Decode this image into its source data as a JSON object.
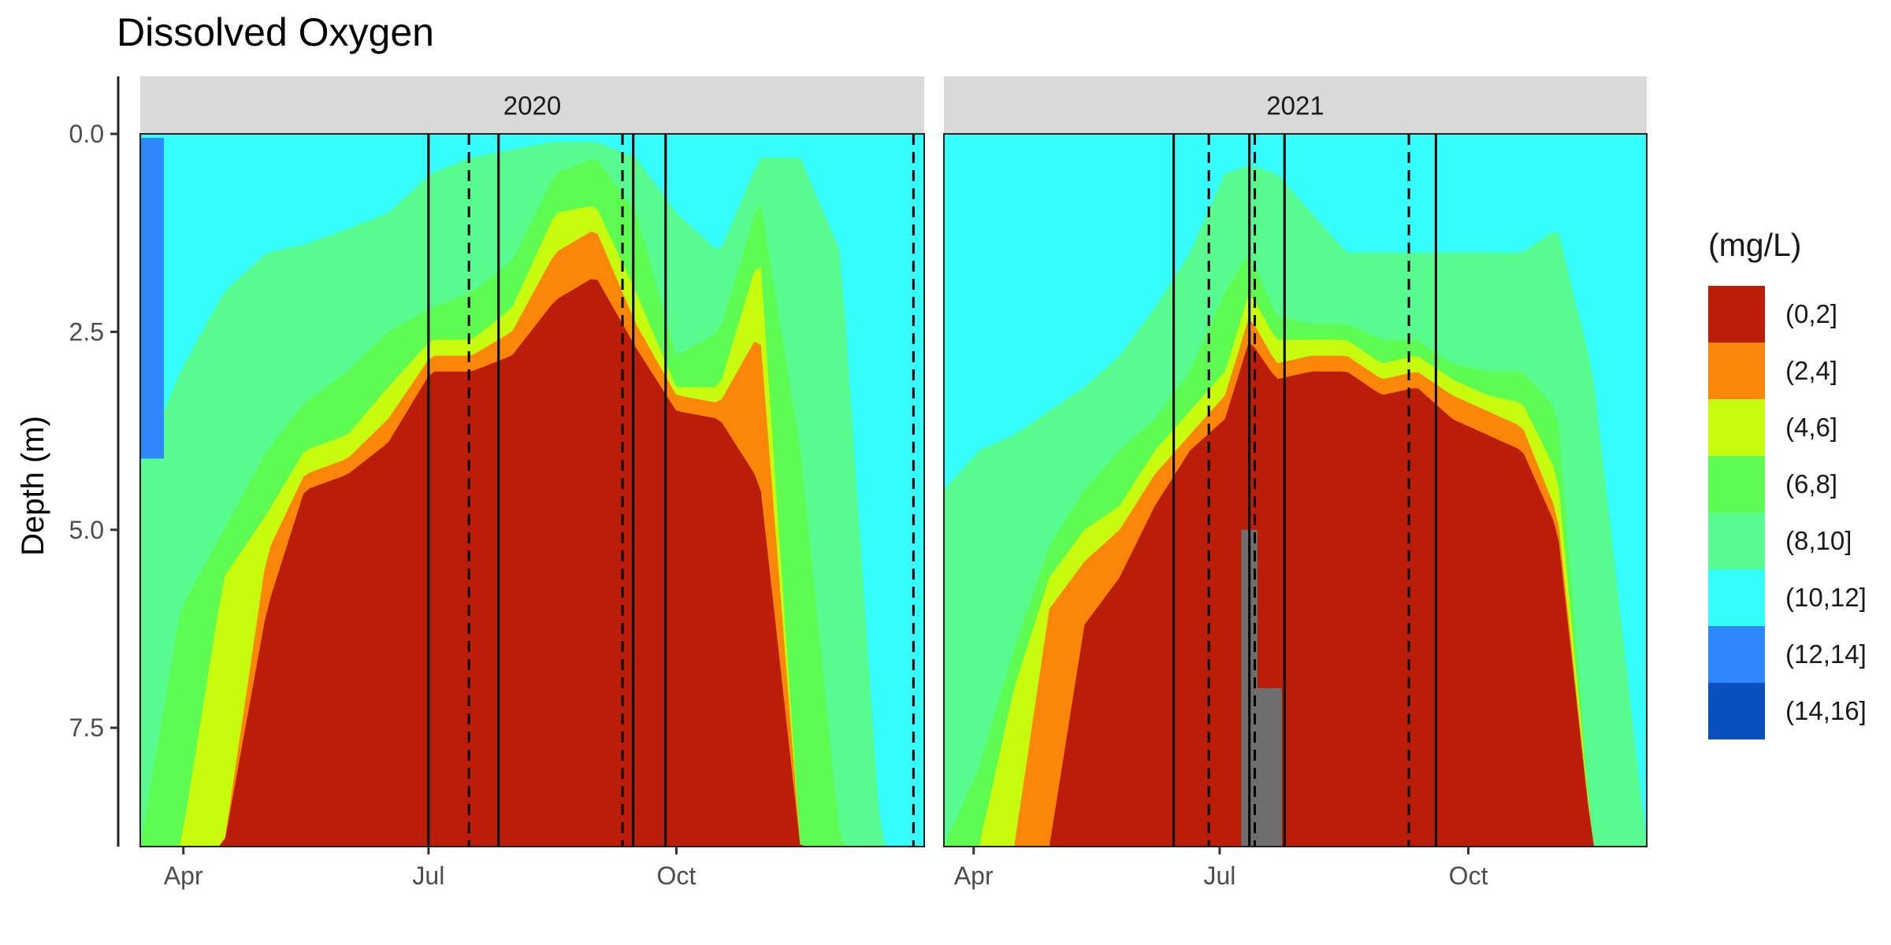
{
  "chart_data": {
    "type": "heatmap",
    "title": "Dissolved Oxygen",
    "ylabel": "Depth (m)",
    "xlabel": "",
    "y_reversed": true,
    "ylim": [
      0,
      9
    ],
    "y_ticks": [
      "0.0",
      "2.5",
      "5.0",
      "7.5"
    ],
    "legend_title": "(mg/L)",
    "legend_placement": "right",
    "bins": [
      {
        "label": "(0,2]",
        "color": "#BA1E08"
      },
      {
        "label": "(2,4]",
        "color": "#FB8608"
      },
      {
        "label": "(4,6]",
        "color": "#C7FC0E"
      },
      {
        "label": "(6,8]",
        "color": "#5EFC52"
      },
      {
        "label": "(8,10]",
        "color": "#57FB8E"
      },
      {
        "label": "(10,12]",
        "color": "#36FCFB"
      },
      {
        "label": "(12,14]",
        "color": "#2F88FB"
      },
      {
        "label": "(14,16]",
        "color": "#0B4FBE"
      }
    ],
    "missing_color": "#6E6E6E",
    "panels": [
      {
        "label": "2020",
        "x_ticks": [
          "Apr",
          "Jul",
          "Oct"
        ],
        "xlim_days": [
          75,
          366
        ],
        "depth_profile": {
          "day": [
            75,
            90,
            106,
            122,
            136,
            152,
            167,
            183,
            198,
            213,
            229,
            244,
            259,
            274,
            290,
            305,
            320,
            335,
            350,
            366
          ],
          "c0": [
            9,
            9,
            9,
            6.0,
            4.5,
            4.3,
            3.9,
            3.0,
            3.0,
            2.8,
            2.1,
            1.8,
            2.7,
            3.5,
            3.6,
            4.4,
            9,
            9,
            9,
            9
          ],
          "c2": [
            9,
            9,
            9,
            5.3,
            4.3,
            4.1,
            3.6,
            2.8,
            2.8,
            2.5,
            1.5,
            1.2,
            2.4,
            3.3,
            3.4,
            2.5,
            9,
            9,
            9,
            9
          ],
          "c4": [
            9,
            9,
            5.6,
            4.8,
            4.0,
            3.8,
            3.2,
            2.6,
            2.6,
            2.2,
            1.0,
            0.9,
            2.0,
            3.2,
            3.2,
            1.5,
            9,
            9,
            9,
            9
          ],
          "c6": [
            9,
            6.0,
            5.0,
            4.0,
            3.4,
            3.0,
            2.5,
            2.2,
            2.0,
            1.6,
            0.5,
            0.3,
            1.0,
            2.8,
            2.5,
            0.8,
            4.0,
            9,
            9,
            9
          ],
          "c8": [
            4.2,
            3.0,
            2.0,
            1.5,
            1.4,
            1.2,
            1.0,
            0.5,
            0.3,
            0.2,
            0.1,
            0.1,
            0.3,
            1.0,
            1.5,
            0.3,
            0.3,
            1.5,
            9,
            9
          ],
          "c10": [
            0.0,
            0.0,
            0.0,
            0.0,
            0.0,
            0.0,
            0.0,
            0.0,
            0.0,
            0.0,
            0.0,
            0.0,
            0.0,
            0.0,
            0.0,
            0.0,
            0.0,
            0.0,
            0.0,
            0.0
          ],
          "c12": [
            4.1,
            0,
            0,
            0,
            0,
            0,
            0,
            0,
            0,
            0,
            0,
            0,
            0,
            0,
            0,
            0,
            0,
            0,
            0,
            0
          ]
        },
        "vlines": [
          {
            "day": 182,
            "style": "solid"
          },
          {
            "day": 197,
            "style": "dashed"
          },
          {
            "day": 208,
            "style": "solid"
          },
          {
            "day": 254,
            "style": "dashed"
          },
          {
            "day": 258,
            "style": "solid"
          },
          {
            "day": 270,
            "style": "solid"
          },
          {
            "day": 362,
            "style": "dashed"
          }
        ]
      },
      {
        "label": "2021",
        "x_ticks": [
          "Apr",
          "Jul",
          "Oct"
        ],
        "xlim_days": [
          80,
          340
        ],
        "depth_profile": {
          "day": [
            80,
            93,
            106,
            119,
            132,
            145,
            158,
            171,
            184,
            193,
            203,
            216,
            229,
            242,
            255,
            268,
            281,
            294,
            307,
            320,
            340
          ],
          "c0": [
            9,
            9,
            9,
            9,
            6.2,
            5.6,
            4.7,
            4.0,
            3.6,
            2.6,
            3.1,
            3.0,
            3.0,
            3.3,
            3.2,
            3.6,
            3.8,
            4.0,
            5.0,
            9,
            9
          ],
          "c2": [
            9,
            9,
            9,
            6.0,
            5.4,
            5.0,
            4.3,
            3.8,
            3.3,
            2.3,
            2.9,
            2.8,
            2.8,
            3.1,
            3.0,
            3.3,
            3.5,
            3.7,
            4.8,
            9,
            9
          ],
          "c4": [
            9,
            9,
            7.0,
            5.6,
            5.0,
            4.7,
            4.0,
            3.5,
            3.0,
            2.0,
            2.6,
            2.6,
            2.6,
            2.9,
            2.8,
            3.1,
            3.3,
            3.4,
            4.3,
            9,
            9
          ],
          "c6": [
            9,
            8.0,
            6.5,
            5.2,
            4.5,
            4.0,
            3.6,
            3.0,
            2.0,
            1.5,
            2.3,
            2.4,
            2.4,
            2.6,
            2.6,
            2.9,
            3.0,
            3.0,
            3.5,
            9,
            9
          ],
          "c8": [
            4.5,
            4.0,
            3.8,
            3.5,
            3.2,
            2.8,
            2.2,
            1.5,
            0.5,
            0.4,
            0.5,
            1.0,
            1.5,
            1.5,
            1.5,
            1.5,
            1.5,
            1.5,
            1.2,
            3.0,
            9
          ],
          "c10": [
            0.0,
            0.0,
            0.0,
            0.0,
            0.0,
            0.0,
            0.0,
            0.0,
            0.0,
            0.0,
            0.0,
            0.0,
            0.0,
            0.0,
            0.0,
            0.0,
            0.0,
            0.0,
            0.0,
            0.0,
            0.0
          ],
          "c12": [
            0,
            0,
            0,
            0,
            0,
            0,
            0,
            0,
            0,
            0,
            0,
            0,
            0,
            0,
            0,
            0,
            0,
            0,
            0,
            0,
            0
          ]
        },
        "vlines": [
          {
            "day": 165,
            "style": "solid"
          },
          {
            "day": 178,
            "style": "dashed"
          },
          {
            "day": 193,
            "style": "solid"
          },
          {
            "day": 195,
            "style": "dashed"
          },
          {
            "day": 206,
            "style": "solid"
          },
          {
            "day": 252,
            "style": "dashed"
          },
          {
            "day": 262,
            "style": "solid"
          }
        ],
        "missing_blocks": [
          {
            "day_start": 190,
            "day_end": 196,
            "depth_start": 5.0,
            "depth_end": 9.0
          },
          {
            "day_start": 196,
            "day_end": 205,
            "depth_start": 7.0,
            "depth_end": 9.0
          }
        ]
      }
    ]
  }
}
